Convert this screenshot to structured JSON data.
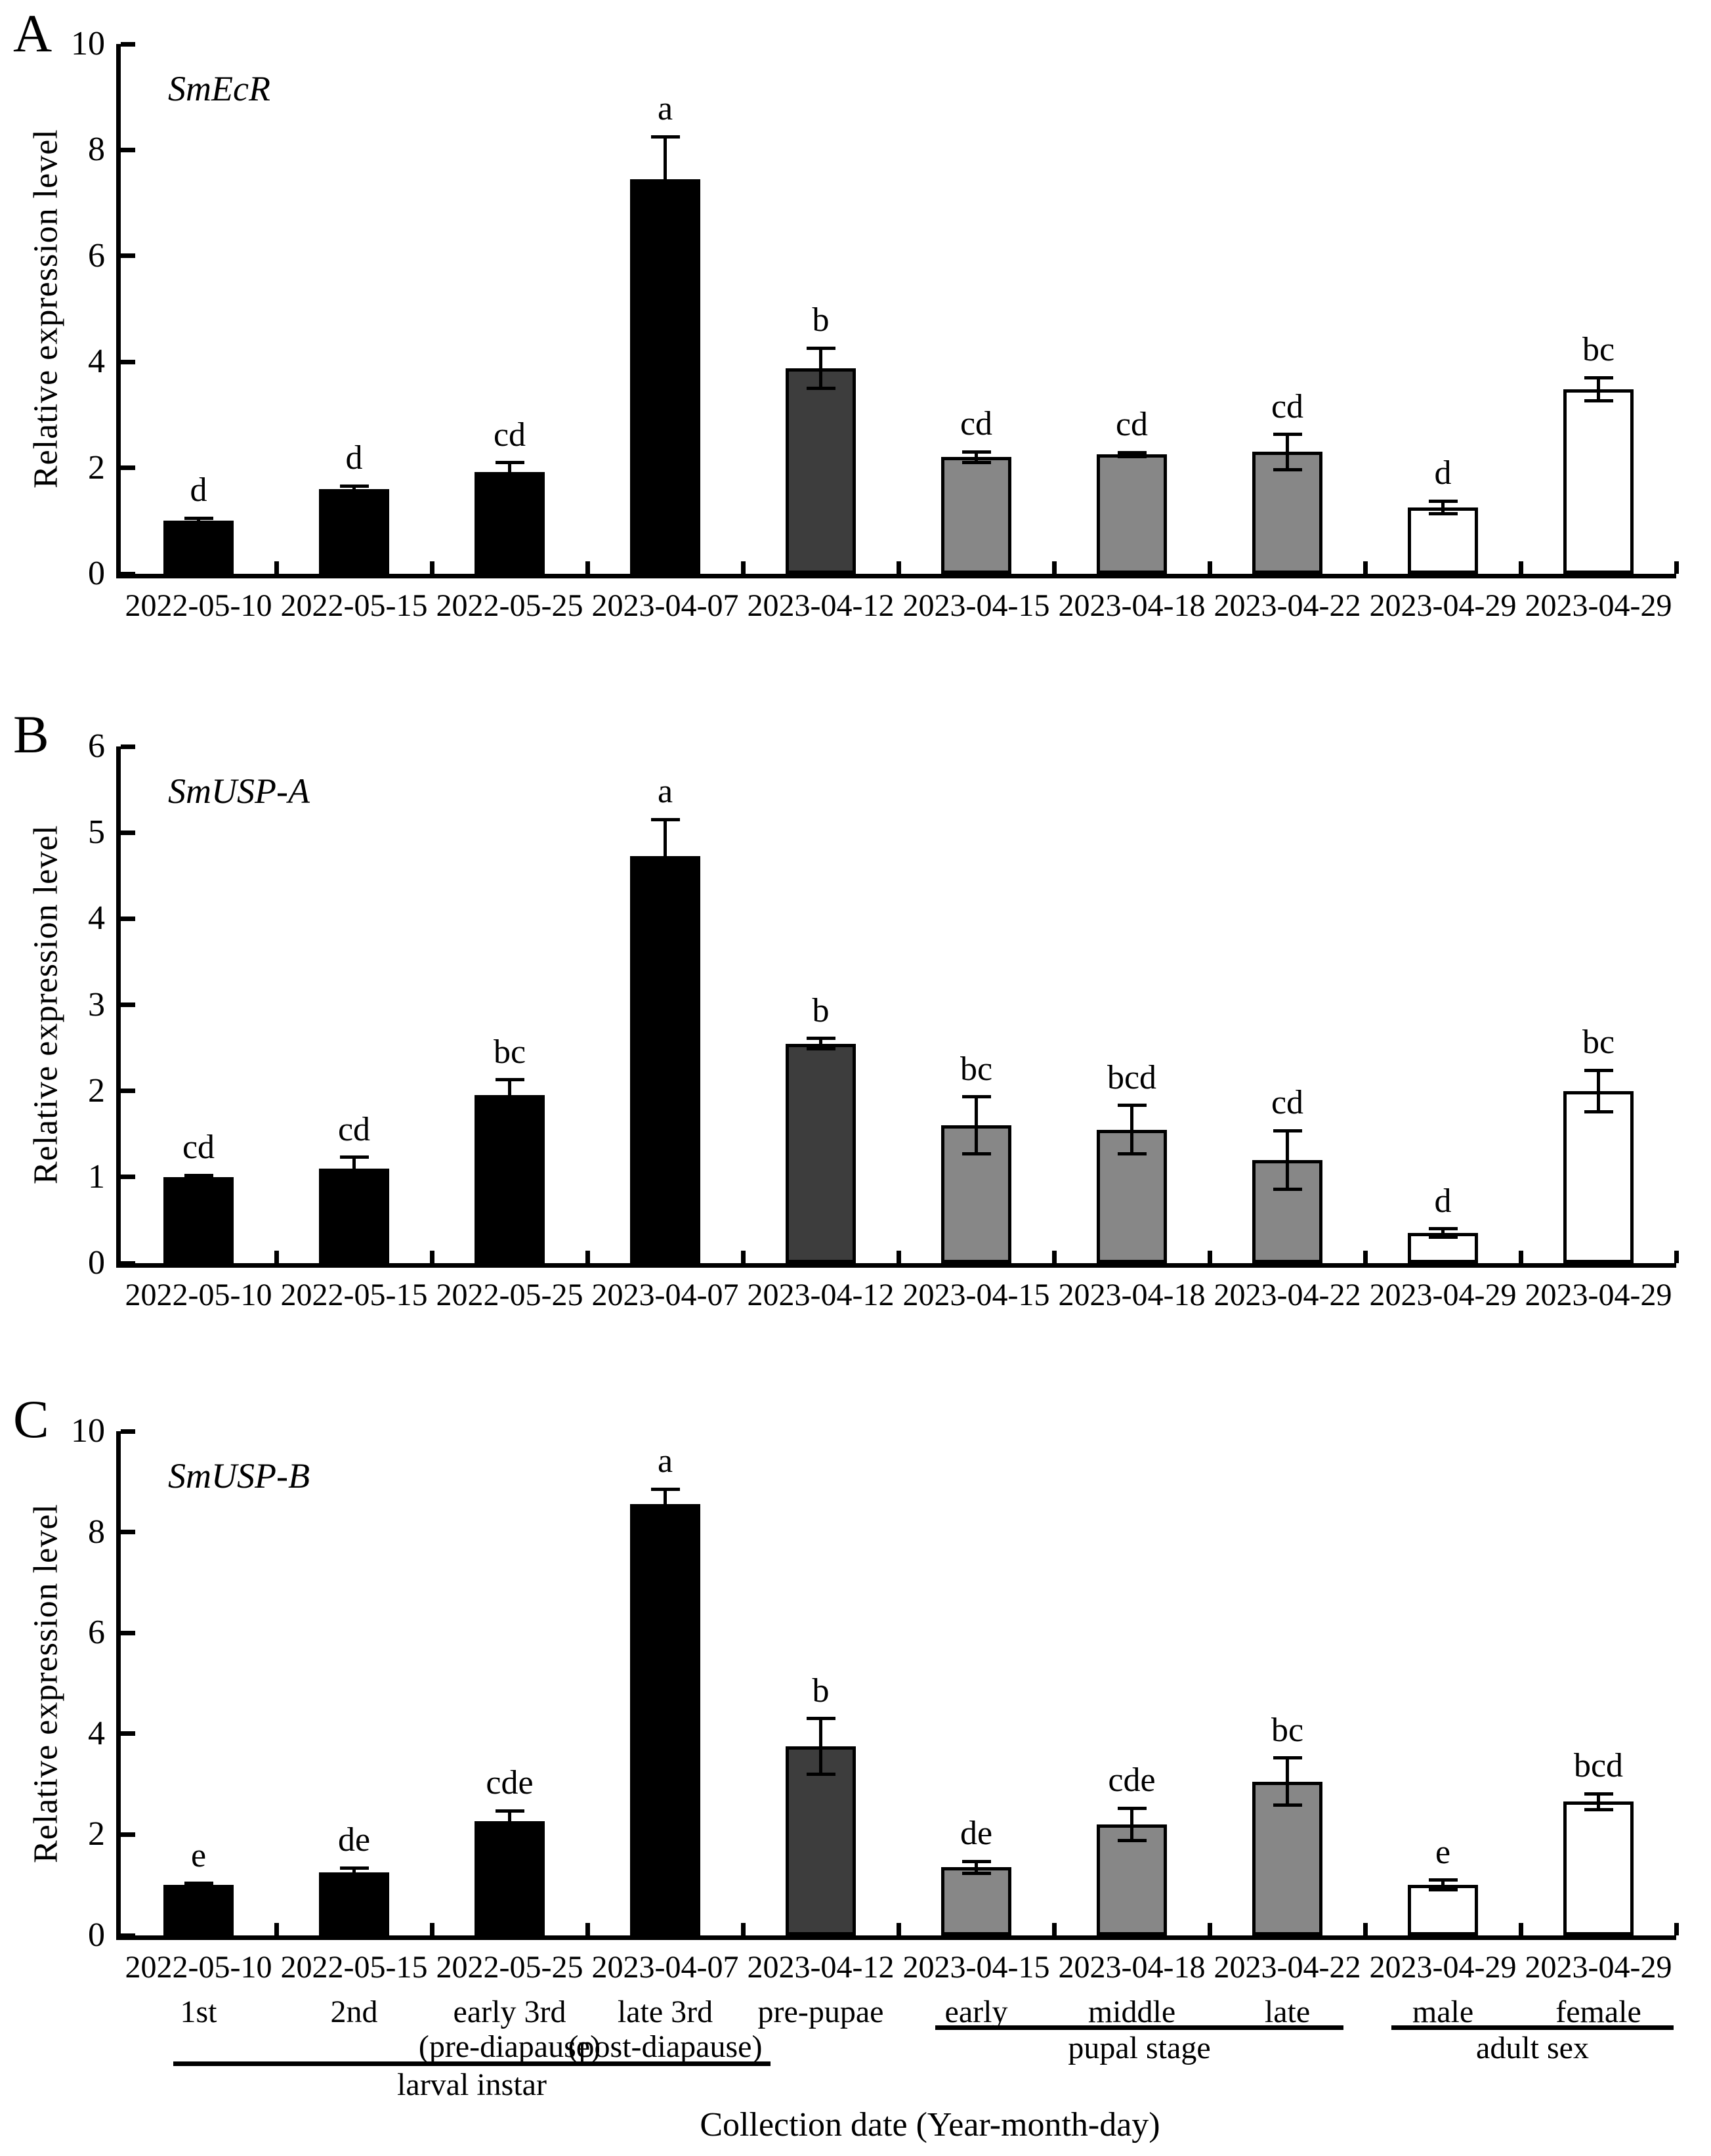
{
  "colors": {
    "black": "#000000",
    "darkgray": "#3d3d3d",
    "gray": "#878787",
    "white": "#ffffff",
    "axis": "#000000"
  },
  "chart_data": [
    {
      "type": "bar",
      "panel_label": "A",
      "title": "SmEcR",
      "ylabel": "Relative expression level",
      "xlabel": "",
      "ylim": [
        0,
        10
      ],
      "yticks": [
        0,
        2,
        4,
        6,
        8,
        10
      ],
      "grid": false,
      "legend": "none",
      "categories": [
        "2022-05-10",
        "2022-05-15",
        "2022-05-25",
        "2023-04-07",
        "2023-04-12",
        "2023-04-15",
        "2023-04-18",
        "2023-04-22",
        "2023-04-29",
        "2023-04-29"
      ],
      "values": [
        1.0,
        1.6,
        1.92,
        7.45,
        3.88,
        2.2,
        2.25,
        2.3,
        1.25,
        3.48
      ],
      "errors": [
        0.05,
        0.06,
        0.18,
        0.8,
        0.38,
        0.1,
        0.04,
        0.33,
        0.12,
        0.22
      ],
      "sig_letters": [
        "d",
        "d",
        "cd",
        "a",
        "b",
        "cd",
        "cd",
        "cd",
        "d",
        "bc"
      ],
      "bar_colors": [
        "black",
        "black",
        "black",
        "black",
        "darkgray",
        "gray",
        "gray",
        "gray",
        "white",
        "white"
      ]
    },
    {
      "type": "bar",
      "panel_label": "B",
      "title": "SmUSP-A",
      "ylabel": "Relative expression level",
      "xlabel": "",
      "ylim": [
        0,
        6
      ],
      "yticks": [
        0,
        1,
        2,
        3,
        4,
        5,
        6
      ],
      "grid": false,
      "legend": "none",
      "categories": [
        "2022-05-10",
        "2022-05-15",
        "2022-05-25",
        "2023-04-07",
        "2023-04-12",
        "2023-04-15",
        "2023-04-18",
        "2023-04-22",
        "2023-04-29",
        "2023-04-29"
      ],
      "values": [
        1.0,
        1.1,
        1.95,
        4.73,
        2.55,
        1.6,
        1.55,
        1.2,
        0.35,
        2.0
      ],
      "errors": [
        0.02,
        0.13,
        0.18,
        0.42,
        0.06,
        0.33,
        0.28,
        0.34,
        0.05,
        0.24
      ],
      "sig_letters": [
        "cd",
        "cd",
        "bc",
        "a",
        "b",
        "bc",
        "bcd",
        "cd",
        "d",
        "bc"
      ],
      "bar_colors": [
        "black",
        "black",
        "black",
        "black",
        "darkgray",
        "gray",
        "gray",
        "gray",
        "white",
        "white"
      ]
    },
    {
      "type": "bar",
      "panel_label": "C",
      "title": "SmUSP-B",
      "ylabel": "Relative expression level",
      "xlabel": "Collection date (Year-month-day)",
      "ylim": [
        0,
        10
      ],
      "yticks": [
        0,
        2,
        4,
        6,
        8,
        10
      ],
      "grid": false,
      "legend": "none",
      "categories": [
        "2022-05-10",
        "2022-05-15",
        "2022-05-25",
        "2023-04-07",
        "2023-04-12",
        "2023-04-15",
        "2023-04-18",
        "2023-04-22",
        "2023-04-29",
        "2023-04-29"
      ],
      "values": [
        1.0,
        1.25,
        2.27,
        8.55,
        3.75,
        1.35,
        2.2,
        3.05,
        1.0,
        2.65
      ],
      "errors": [
        0.03,
        0.09,
        0.2,
        0.3,
        0.55,
        0.12,
        0.32,
        0.47,
        0.1,
        0.16
      ],
      "sig_letters": [
        "e",
        "de",
        "cde",
        "a",
        "b",
        "de",
        "cde",
        "bc",
        "e",
        "bcd"
      ],
      "bar_colors": [
        "black",
        "black",
        "black",
        "black",
        "darkgray",
        "gray",
        "gray",
        "gray",
        "white",
        "white"
      ]
    }
  ],
  "annotations": {
    "xlabel": "Collection date (Year-month-day)",
    "stage_labels": [
      {
        "slot": 0,
        "line1": "1st",
        "line2": ""
      },
      {
        "slot": 1,
        "line1": "2nd",
        "line2": ""
      },
      {
        "slot": 2,
        "line1": "early 3rd",
        "line2": "(pre-diapause)"
      },
      {
        "slot": 3,
        "line1": "late 3rd",
        "line2": "(post-diapause)"
      },
      {
        "slot": 4,
        "line1": "pre-pupae",
        "line2": ""
      },
      {
        "slot": 5,
        "line1": "early",
        "line2": ""
      },
      {
        "slot": 6,
        "line1": "middle",
        "line2": ""
      },
      {
        "slot": 7,
        "line1": "late",
        "line2": ""
      },
      {
        "slot": 8,
        "line1": "male",
        "line2": ""
      },
      {
        "slot": 9,
        "line1": "female",
        "line2": ""
      }
    ],
    "groups": [
      {
        "label": "larval instar",
        "from_slot": 1,
        "to_slot": 4,
        "level": "low"
      },
      {
        "label": "pupal stage",
        "from_slot": 6,
        "to_slot": 8,
        "level": "high"
      },
      {
        "label": "adult sex",
        "from_slot": 9,
        "to_slot": 10,
        "level": "high"
      }
    ]
  }
}
